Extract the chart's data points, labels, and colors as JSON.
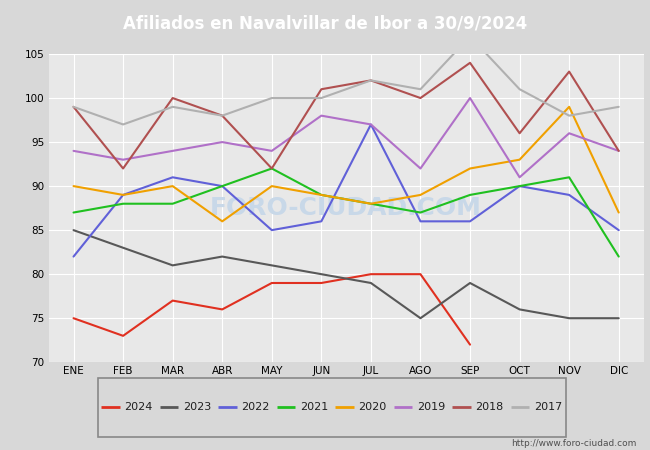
{
  "title": "Afiliados en Navalvillar de Ibor a 30/9/2024",
  "title_bg_color": "#4a86c8",
  "title_text_color": "#ffffff",
  "ylim": [
    70,
    105
  ],
  "months": [
    "ENE",
    "FEB",
    "MAR",
    "ABR",
    "MAY",
    "JUN",
    "JUL",
    "AGO",
    "SEP",
    "OCT",
    "NOV",
    "DIC"
  ],
  "yticks": [
    70,
    75,
    80,
    85,
    90,
    95,
    100,
    105
  ],
  "watermark_url": "http://www.foro-ciudad.com",
  "series": {
    "2024": {
      "color": "#e03020",
      "values": [
        75,
        73,
        77,
        76,
        79,
        79,
        80,
        80,
        72,
        null,
        null,
        null
      ]
    },
    "2023": {
      "color": "#585858",
      "values": [
        85,
        83,
        81,
        82,
        81,
        80,
        79,
        75,
        79,
        76,
        75,
        75
      ]
    },
    "2022": {
      "color": "#6060d8",
      "values": [
        82,
        89,
        91,
        90,
        85,
        86,
        97,
        86,
        86,
        90,
        89,
        85
      ]
    },
    "2021": {
      "color": "#20c020",
      "values": [
        87,
        88,
        88,
        90,
        92,
        89,
        88,
        87,
        89,
        90,
        91,
        82
      ]
    },
    "2020": {
      "color": "#f0a000",
      "values": [
        90,
        89,
        90,
        86,
        90,
        89,
        88,
        89,
        92,
        93,
        99,
        87
      ]
    },
    "2019": {
      "color": "#b070c8",
      "values": [
        94,
        93,
        94,
        95,
        94,
        98,
        97,
        92,
        100,
        91,
        96,
        94
      ]
    },
    "2018": {
      "color": "#b05050",
      "values": [
        99,
        92,
        100,
        98,
        92,
        101,
        102,
        100,
        104,
        96,
        103,
        94
      ]
    },
    "2017": {
      "color": "#b0b0b0",
      "values": [
        99,
        97,
        99,
        98,
        100,
        100,
        102,
        101,
        107,
        101,
        98,
        99
      ]
    }
  },
  "legend_order": [
    "2024",
    "2023",
    "2022",
    "2021",
    "2020",
    "2019",
    "2018",
    "2017"
  ],
  "figure_bg_color": "#d8d8d8",
  "plot_bg_color": "#e8e8e8",
  "grid_color": "#ffffff",
  "watermark_color": "#c8d8e8",
  "linewidth": 1.5
}
